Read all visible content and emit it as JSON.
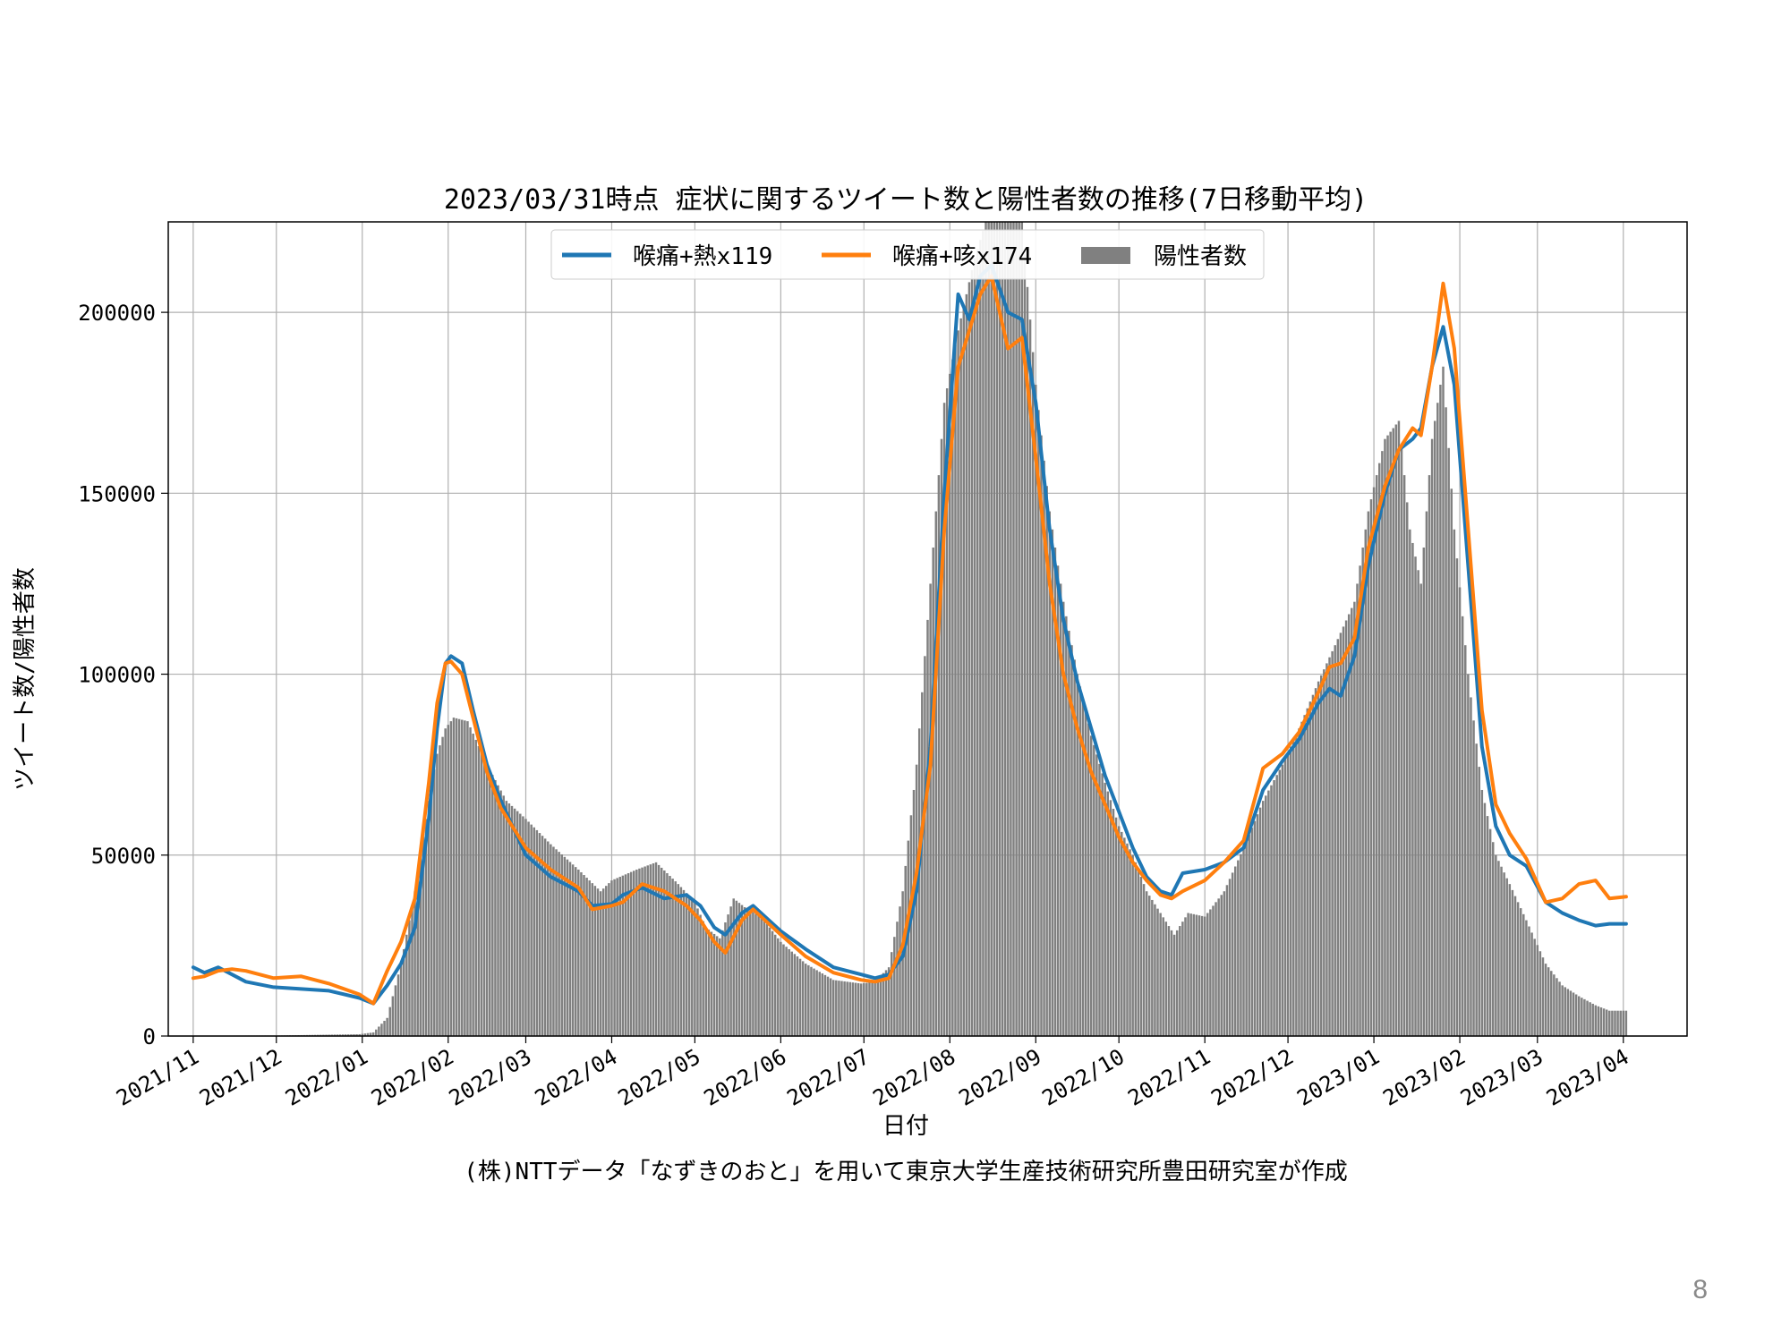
{
  "slide": {
    "page_number": "8",
    "credit": "(株)NTTデータ「なずきのおと」を用いて東京大学生産技術研究所豊田研究室が作成"
  },
  "colors": {
    "series1": "#1f77b4",
    "series2": "#ff7f0e",
    "bars": "#808080",
    "grid": "#b0b0b0"
  },
  "chart_data": {
    "type": "line",
    "title": "2023/03/31時点 症状に関するツイート数と陽性者数の推移(7日移動平均)",
    "xlabel": "日付",
    "ylabel": "ツイート数/陽性者数",
    "ylim": [
      0,
      225000
    ],
    "yticks": [
      0,
      50000,
      100000,
      150000,
      200000
    ],
    "xlim": [
      "2021-10-23",
      "2023-04-24"
    ],
    "xticks": [
      "2021/11",
      "2021/12",
      "2022/01",
      "2022/02",
      "2022/03",
      "2022/04",
      "2022/05",
      "2022/06",
      "2022/07",
      "2022/08",
      "2022/09",
      "2022/10",
      "2022/11",
      "2022/12",
      "2023/01",
      "2023/02",
      "2023/03",
      "2023/04"
    ],
    "grid": true,
    "legend_position": "upper-center",
    "series": [
      {
        "name": "喉痛+熱x119",
        "type": "line",
        "color": "#1f77b4",
        "points": [
          [
            "2021-11-01",
            19000
          ],
          [
            "2021-11-05",
            17500
          ],
          [
            "2021-11-10",
            19000
          ],
          [
            "2021-11-15",
            17000
          ],
          [
            "2021-11-20",
            15000
          ],
          [
            "2021-11-30",
            13500
          ],
          [
            "2021-12-10",
            13000
          ],
          [
            "2021-12-20",
            12500
          ],
          [
            "2021-12-31",
            10500
          ],
          [
            "2022-01-05",
            9000
          ],
          [
            "2022-01-10",
            14000
          ],
          [
            "2022-01-15",
            20000
          ],
          [
            "2022-01-20",
            30000
          ],
          [
            "2022-01-25",
            60000
          ],
          [
            "2022-01-28",
            85000
          ],
          [
            "2022-01-31",
            103000
          ],
          [
            "2022-02-02",
            105000
          ],
          [
            "2022-02-06",
            103000
          ],
          [
            "2022-02-10",
            90000
          ],
          [
            "2022-02-15",
            75000
          ],
          [
            "2022-02-20",
            65000
          ],
          [
            "2022-03-01",
            50000
          ],
          [
            "2022-03-10",
            44000
          ],
          [
            "2022-03-20",
            40000
          ],
          [
            "2022-03-25",
            36000
          ],
          [
            "2022-04-01",
            36500
          ],
          [
            "2022-04-05",
            39000
          ],
          [
            "2022-04-12",
            41000
          ],
          [
            "2022-04-20",
            38000
          ],
          [
            "2022-04-28",
            39000
          ],
          [
            "2022-05-03",
            36000
          ],
          [
            "2022-05-08",
            30000
          ],
          [
            "2022-05-12",
            28000
          ],
          [
            "2022-05-18",
            34000
          ],
          [
            "2022-05-22",
            36000
          ],
          [
            "2022-06-01",
            29000
          ],
          [
            "2022-06-10",
            24000
          ],
          [
            "2022-06-20",
            19000
          ],
          [
            "2022-06-30",
            17000
          ],
          [
            "2022-07-05",
            16000
          ],
          [
            "2022-07-10",
            17000
          ],
          [
            "2022-07-15",
            22000
          ],
          [
            "2022-07-20",
            40000
          ],
          [
            "2022-07-25",
            80000
          ],
          [
            "2022-07-30",
            150000
          ],
          [
            "2022-08-04",
            205000
          ],
          [
            "2022-08-08",
            198000
          ],
          [
            "2022-08-12",
            210000
          ],
          [
            "2022-08-16",
            213000
          ],
          [
            "2022-08-22",
            200000
          ],
          [
            "2022-08-27",
            198000
          ],
          [
            "2022-09-01",
            175000
          ],
          [
            "2022-09-06",
            140000
          ],
          [
            "2022-09-11",
            115000
          ],
          [
            "2022-09-16",
            98000
          ],
          [
            "2022-09-21",
            85000
          ],
          [
            "2022-09-26",
            72000
          ],
          [
            "2022-10-01",
            62000
          ],
          [
            "2022-10-06",
            52000
          ],
          [
            "2022-10-11",
            44000
          ],
          [
            "2022-10-16",
            40000
          ],
          [
            "2022-10-20",
            39000
          ],
          [
            "2022-10-24",
            45000
          ],
          [
            "2022-11-01",
            46000
          ],
          [
            "2022-11-08",
            48000
          ],
          [
            "2022-11-15",
            52000
          ],
          [
            "2022-11-22",
            68000
          ],
          [
            "2022-11-29",
            76000
          ],
          [
            "2022-12-05",
            82000
          ],
          [
            "2022-12-12",
            92000
          ],
          [
            "2022-12-16",
            96000
          ],
          [
            "2022-12-20",
            94000
          ],
          [
            "2022-12-25",
            105000
          ],
          [
            "2022-12-30",
            130000
          ],
          [
            "2023-01-05",
            150000
          ],
          [
            "2023-01-10",
            162000
          ],
          [
            "2023-01-15",
            165000
          ],
          [
            "2023-01-18",
            168000
          ],
          [
            "2023-01-22",
            185000
          ],
          [
            "2023-01-26",
            196000
          ],
          [
            "2023-01-30",
            180000
          ],
          [
            "2023-02-04",
            130000
          ],
          [
            "2023-02-09",
            80000
          ],
          [
            "2023-02-14",
            58000
          ],
          [
            "2023-02-19",
            50000
          ],
          [
            "2023-02-25",
            47000
          ],
          [
            "2023-03-04",
            37000
          ],
          [
            "2023-03-10",
            34000
          ],
          [
            "2023-03-16",
            32000
          ],
          [
            "2023-03-22",
            30500
          ],
          [
            "2023-03-27",
            31000
          ],
          [
            "2023-04-02",
            31000
          ]
        ]
      },
      {
        "name": "喉痛+咳x174",
        "type": "line",
        "color": "#ff7f0e",
        "points": [
          [
            "2021-11-01",
            16000
          ],
          [
            "2021-11-05",
            16500
          ],
          [
            "2021-11-10",
            18000
          ],
          [
            "2021-11-15",
            18500
          ],
          [
            "2021-11-20",
            18000
          ],
          [
            "2021-11-30",
            16000
          ],
          [
            "2021-12-10",
            16500
          ],
          [
            "2021-12-20",
            14500
          ],
          [
            "2021-12-31",
            11500
          ],
          [
            "2022-01-05",
            9000
          ],
          [
            "2022-01-10",
            18000
          ],
          [
            "2022-01-15",
            26000
          ],
          [
            "2022-01-20",
            38000
          ],
          [
            "2022-01-25",
            70000
          ],
          [
            "2022-01-28",
            92000
          ],
          [
            "2022-01-31",
            103000
          ],
          [
            "2022-02-02",
            103500
          ],
          [
            "2022-02-06",
            100000
          ],
          [
            "2022-02-10",
            88000
          ],
          [
            "2022-02-15",
            73000
          ],
          [
            "2022-02-20",
            63000
          ],
          [
            "2022-03-01",
            52000
          ],
          [
            "2022-03-10",
            46000
          ],
          [
            "2022-03-20",
            41000
          ],
          [
            "2022-03-25",
            35000
          ],
          [
            "2022-04-01",
            36000
          ],
          [
            "2022-04-05",
            37000
          ],
          [
            "2022-04-12",
            42000
          ],
          [
            "2022-04-20",
            40000
          ],
          [
            "2022-04-28",
            36000
          ],
          [
            "2022-05-03",
            32000
          ],
          [
            "2022-05-08",
            26000
          ],
          [
            "2022-05-12",
            23000
          ],
          [
            "2022-05-18",
            32000
          ],
          [
            "2022-05-22",
            35000
          ],
          [
            "2022-06-01",
            28000
          ],
          [
            "2022-06-10",
            22000
          ],
          [
            "2022-06-20",
            17500
          ],
          [
            "2022-06-30",
            15500
          ],
          [
            "2022-07-05",
            15000
          ],
          [
            "2022-07-10",
            16000
          ],
          [
            "2022-07-15",
            25000
          ],
          [
            "2022-07-20",
            45000
          ],
          [
            "2022-07-25",
            75000
          ],
          [
            "2022-07-30",
            140000
          ],
          [
            "2022-08-04",
            185000
          ],
          [
            "2022-08-08",
            195000
          ],
          [
            "2022-08-12",
            205000
          ],
          [
            "2022-08-16",
            210000
          ],
          [
            "2022-08-22",
            190000
          ],
          [
            "2022-08-27",
            193000
          ],
          [
            "2022-09-01",
            160000
          ],
          [
            "2022-09-06",
            125000
          ],
          [
            "2022-09-11",
            100000
          ],
          [
            "2022-09-16",
            85000
          ],
          [
            "2022-09-21",
            73000
          ],
          [
            "2022-09-26",
            64000
          ],
          [
            "2022-10-01",
            55000
          ],
          [
            "2022-10-06",
            48000
          ],
          [
            "2022-10-11",
            43000
          ],
          [
            "2022-10-16",
            39000
          ],
          [
            "2022-10-20",
            38000
          ],
          [
            "2022-10-24",
            40000
          ],
          [
            "2022-11-01",
            43000
          ],
          [
            "2022-11-08",
            48000
          ],
          [
            "2022-11-15",
            54000
          ],
          [
            "2022-11-22",
            74000
          ],
          [
            "2022-11-29",
            78000
          ],
          [
            "2022-12-05",
            84000
          ],
          [
            "2022-12-12",
            95000
          ],
          [
            "2022-12-16",
            102000
          ],
          [
            "2022-12-20",
            103000
          ],
          [
            "2022-12-25",
            110000
          ],
          [
            "2022-12-30",
            135000
          ],
          [
            "2023-01-05",
            152000
          ],
          [
            "2023-01-10",
            162000
          ],
          [
            "2023-01-15",
            168000
          ],
          [
            "2023-01-18",
            166000
          ],
          [
            "2023-01-22",
            185000
          ],
          [
            "2023-01-26",
            208000
          ],
          [
            "2023-01-30",
            190000
          ],
          [
            "2023-02-04",
            140000
          ],
          [
            "2023-02-09",
            90000
          ],
          [
            "2023-02-14",
            64000
          ],
          [
            "2023-02-19",
            56000
          ],
          [
            "2023-02-25",
            49000
          ],
          [
            "2023-03-04",
            37000
          ],
          [
            "2023-03-10",
            38000
          ],
          [
            "2023-03-16",
            42000
          ],
          [
            "2023-03-22",
            43000
          ],
          [
            "2023-03-27",
            38000
          ],
          [
            "2023-04-02",
            38500
          ]
        ]
      },
      {
        "name": "陽性者数",
        "type": "bar",
        "color": "#808080",
        "points": [
          [
            "2021-11-01",
            100
          ],
          [
            "2021-12-01",
            150
          ],
          [
            "2021-12-31",
            500
          ],
          [
            "2022-01-05",
            1000
          ],
          [
            "2022-01-10",
            5000
          ],
          [
            "2022-01-15",
            20000
          ],
          [
            "2022-01-20",
            40000
          ],
          [
            "2022-01-25",
            65000
          ],
          [
            "2022-01-28",
            78000
          ],
          [
            "2022-01-31",
            85000
          ],
          [
            "2022-02-03",
            88000
          ],
          [
            "2022-02-08",
            87000
          ],
          [
            "2022-02-15",
            75000
          ],
          [
            "2022-02-22",
            65000
          ],
          [
            "2022-03-01",
            60000
          ],
          [
            "2022-03-10",
            53000
          ],
          [
            "2022-03-20",
            46000
          ],
          [
            "2022-03-28",
            40000
          ],
          [
            "2022-04-01",
            43000
          ],
          [
            "2022-04-10",
            46000
          ],
          [
            "2022-04-17",
            48000
          ],
          [
            "2022-04-25",
            42000
          ],
          [
            "2022-05-01",
            37000
          ],
          [
            "2022-05-05",
            30000
          ],
          [
            "2022-05-10",
            27000
          ],
          [
            "2022-05-15",
            38000
          ],
          [
            "2022-05-20",
            35000
          ],
          [
            "2022-05-25",
            33000
          ],
          [
            "2022-06-01",
            26000
          ],
          [
            "2022-06-10",
            20000
          ],
          [
            "2022-06-20",
            15500
          ],
          [
            "2022-06-30",
            14500
          ],
          [
            "2022-07-05",
            15000
          ],
          [
            "2022-07-10",
            19000
          ],
          [
            "2022-07-15",
            40000
          ],
          [
            "2022-07-20",
            75000
          ],
          [
            "2022-07-25",
            125000
          ],
          [
            "2022-07-30",
            175000
          ],
          [
            "2022-08-04",
            195000
          ],
          [
            "2022-08-10",
            215000
          ],
          [
            "2022-08-16",
            230000
          ],
          [
            "2022-08-22",
            225000
          ],
          [
            "2022-08-27",
            225000
          ],
          [
            "2022-09-01",
            180000
          ],
          [
            "2022-09-06",
            145000
          ],
          [
            "2022-09-11",
            120000
          ],
          [
            "2022-09-16",
            100000
          ],
          [
            "2022-09-21",
            83000
          ],
          [
            "2022-09-26",
            70000
          ],
          [
            "2022-10-01",
            58000
          ],
          [
            "2022-10-06",
            50000
          ],
          [
            "2022-10-11",
            40000
          ],
          [
            "2022-10-16",
            34000
          ],
          [
            "2022-10-21",
            28000
          ],
          [
            "2022-10-26",
            34000
          ],
          [
            "2022-11-01",
            33000
          ],
          [
            "2022-11-08",
            40000
          ],
          [
            "2022-11-15",
            52000
          ],
          [
            "2022-11-22",
            65000
          ],
          [
            "2022-11-29",
            75000
          ],
          [
            "2022-12-05",
            85000
          ],
          [
            "2022-12-12",
            98000
          ],
          [
            "2022-12-18",
            108000
          ],
          [
            "2022-12-25",
            120000
          ],
          [
            "2022-12-30",
            145000
          ],
          [
            "2023-01-05",
            165000
          ],
          [
            "2023-01-10",
            170000
          ],
          [
            "2023-01-14",
            140000
          ],
          [
            "2023-01-18",
            125000
          ],
          [
            "2023-01-22",
            165000
          ],
          [
            "2023-01-26",
            185000
          ],
          [
            "2023-01-30",
            140000
          ],
          [
            "2023-02-04",
            100000
          ],
          [
            "2023-02-09",
            68000
          ],
          [
            "2023-02-14",
            50000
          ],
          [
            "2023-02-19",
            42000
          ],
          [
            "2023-02-25",
            32000
          ],
          [
            "2023-03-04",
            20000
          ],
          [
            "2023-03-10",
            14000
          ],
          [
            "2023-03-16",
            11000
          ],
          [
            "2023-03-22",
            8500
          ],
          [
            "2023-03-27",
            7000
          ],
          [
            "2023-04-02",
            7000
          ]
        ]
      }
    ]
  }
}
